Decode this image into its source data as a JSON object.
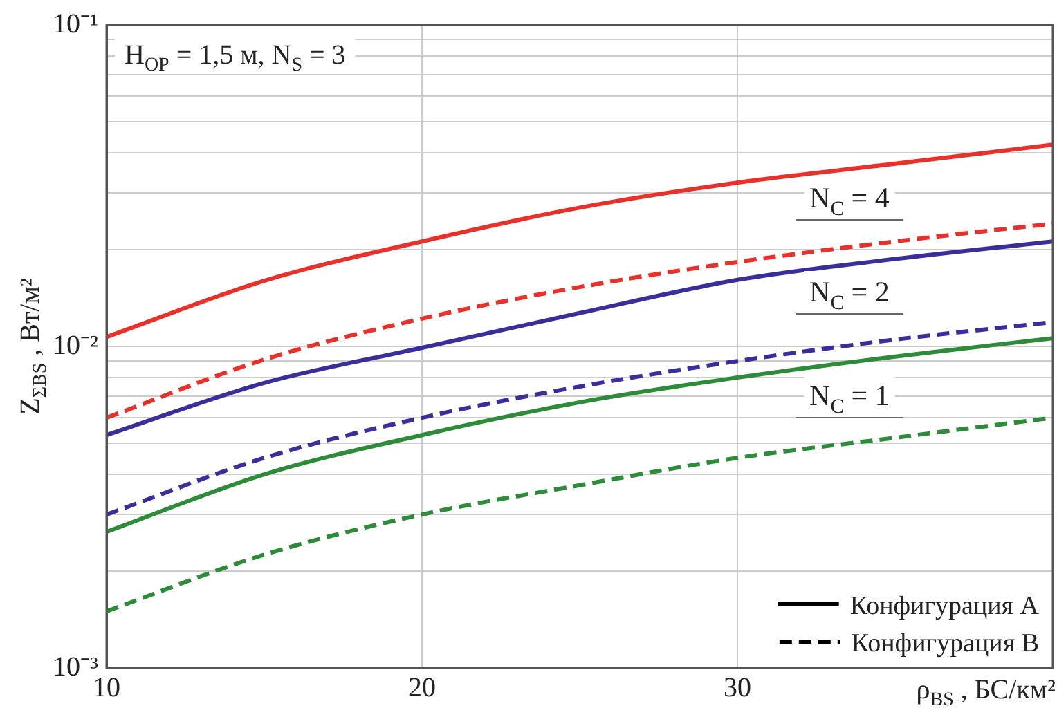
{
  "chart_data": {
    "type": "line",
    "xlabel": "ρ$_{BS}$ , БС/км²",
    "ylabel": "Z$_{ΣBS}$ , Вт/м²",
    "log": "y",
    "grid": true,
    "legend": false,
    "marker": "none",
    "x": [
      10,
      15,
      20,
      25,
      30,
      35,
      40
    ],
    "xlim": [
      10,
      40
    ],
    "xticks": [
      10,
      20,
      30
    ],
    "ylim": [
      0.001,
      0.1
    ],
    "yticks": [
      {
        "value": 0.001,
        "label": "10⁻³"
      },
      {
        "value": 0.002,
        "label": null
      },
      {
        "value": 0.003,
        "label": null
      },
      {
        "value": 0.004,
        "label": null
      },
      {
        "value": 0.005,
        "label": null
      },
      {
        "value": 0.006,
        "label": null
      },
      {
        "value": 0.007,
        "label": null
      },
      {
        "value": 0.008,
        "label": null
      },
      {
        "value": 0.009,
        "label": null
      },
      {
        "value": 0.01,
        "label": "10⁻²"
      },
      {
        "value": 0.02,
        "label": null
      },
      {
        "value": 0.03,
        "label": null
      },
      {
        "value": 0.04,
        "label": null
      },
      {
        "value": 0.05,
        "label": null
      },
      {
        "value": 0.06,
        "label": null
      },
      {
        "value": 0.07,
        "label": null
      },
      {
        "value": 0.08,
        "label": null
      },
      {
        "value": 0.09,
        "label": null
      },
      {
        "value": 0.1,
        "label": "10⁻¹"
      }
    ],
    "series": [
      {
        "color": "#e8312a",
        "line_style": "solid",
        "values": [
          0.0107,
          0.016,
          0.0212,
          0.027,
          0.0323,
          0.037,
          0.0424
        ]
      },
      {
        "color": "#e8312a",
        "line_style": "dashed",
        "values": [
          0.006,
          0.0091,
          0.0122,
          0.0153,
          0.0183,
          0.0212,
          0.0241
        ]
      },
      {
        "color": "#3a2f9a",
        "line_style": "solid",
        "values": [
          0.0053,
          0.0077,
          0.0099,
          0.0127,
          0.0161,
          0.0187,
          0.0212
        ]
      },
      {
        "color": "#3a2f9a",
        "line_style": "dashed",
        "values": [
          0.003,
          0.0045,
          0.006,
          0.0075,
          0.009,
          0.0105,
          0.0119
        ]
      },
      {
        "color": "#2e8b3a",
        "line_style": "solid",
        "values": [
          0.00265,
          0.004,
          0.0053,
          0.0067,
          0.008,
          0.0093,
          0.0106
        ]
      },
      {
        "color": "#2e8b3a",
        "line_style": "dashed",
        "values": [
          0.0015,
          0.00225,
          0.003,
          0.0037,
          0.0045,
          0.0052,
          0.006
        ]
      }
    ],
    "annotations": [
      "H$_{OP}$ = 1,5 м, N$_{S}$ = 3",
      "Конфигурация A",
      "Конфигурация B",
      "N$_{C}$ = 4",
      "N$_{C}$ = 2",
      "N$_{C}$ = 1"
    ]
  }
}
